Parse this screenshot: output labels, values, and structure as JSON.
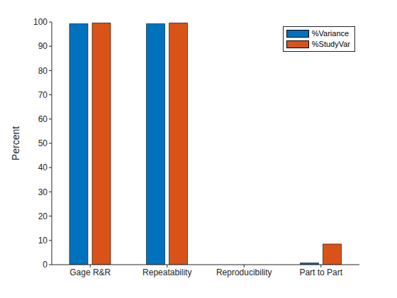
{
  "chart_data": {
    "type": "bar",
    "y_label": "Percent",
    "categories": [
      "Gage R&R",
      "Repeatability",
      "Reproducibility",
      "Part to Part"
    ],
    "series": [
      {
        "name": "%Variance",
        "color": "#0072bd",
        "values": [
          99.3,
          99.3,
          0,
          0.7
        ]
      },
      {
        "name": "%StudyVar",
        "color": "#d95319",
        "values": [
          99.6,
          99.6,
          0,
          8.5
        ]
      }
    ],
    "ylim": [
      0,
      100
    ],
    "yticks": [
      0,
      10,
      20,
      30,
      40,
      50,
      60,
      70,
      80,
      90,
      100
    ],
    "grid": false,
    "legend": "upper right"
  }
}
